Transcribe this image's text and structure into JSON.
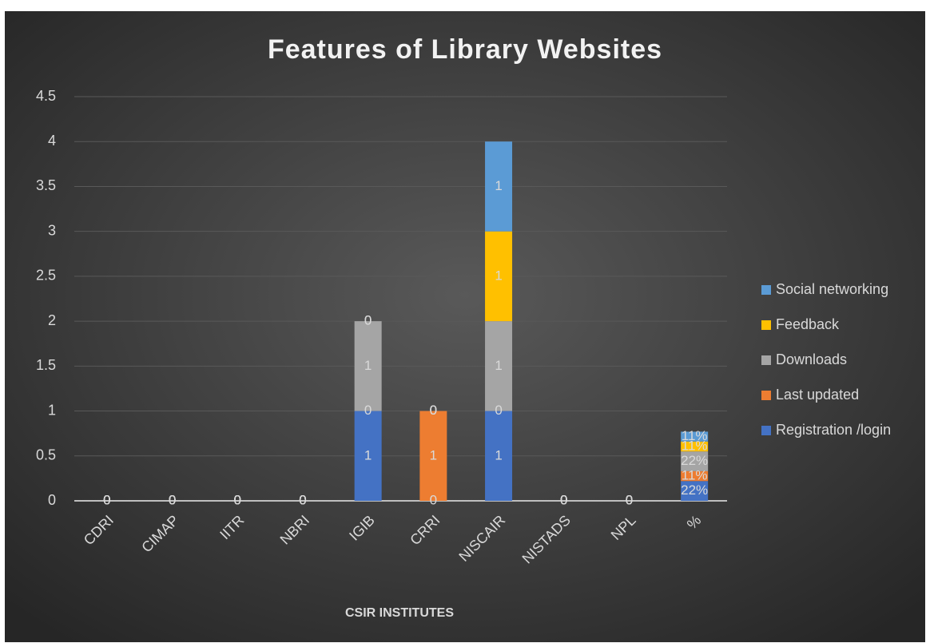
{
  "chart_data": {
    "type": "stacked_bar",
    "title": "Features of Library Websites",
    "x_label": "CSIR INSTITUTES",
    "categories": [
      "CDRI",
      "CIMAP",
      "IITR",
      "NBRI",
      "IGIB",
      "CRRI",
      "NISCAIR",
      "NISTADS",
      "NPL",
      "%"
    ],
    "series": [
      {
        "name": "Registration /login",
        "color": "#4472c4",
        "values": [
          0,
          0,
          0,
          0,
          1,
          0,
          1,
          0,
          0,
          0.22
        ],
        "value_labels": [
          null,
          null,
          null,
          null,
          null,
          null,
          null,
          null,
          null,
          "22%"
        ]
      },
      {
        "name": "Last updated",
        "color": "#ed7d31",
        "values": [
          0,
          0,
          0,
          0,
          0,
          1,
          0,
          0,
          0,
          0.11
        ],
        "value_labels": [
          null,
          null,
          null,
          null,
          null,
          null,
          null,
          null,
          null,
          "11%"
        ]
      },
      {
        "name": "Downloads",
        "color": "#a5a5a5",
        "values": [
          0,
          0,
          0,
          0,
          1,
          0,
          1,
          0,
          0,
          0.22
        ],
        "value_labels": [
          null,
          null,
          null,
          null,
          null,
          null,
          null,
          null,
          null,
          "22%"
        ]
      },
      {
        "name": "Feedback",
        "color": "#ffc000",
        "values": [
          0,
          0,
          0,
          0,
          0,
          0,
          1,
          0,
          0,
          0.11
        ],
        "value_labels": [
          null,
          null,
          null,
          null,
          null,
          null,
          null,
          null,
          null,
          "11%"
        ]
      },
      {
        "name": "Social networking",
        "color": "#5b9bd5",
        "values": [
          0,
          0,
          0,
          0,
          0,
          0,
          1,
          0,
          0,
          0.11
        ],
        "value_labels": [
          null,
          null,
          null,
          null,
          null,
          null,
          null,
          null,
          null,
          "11%"
        ]
      }
    ],
    "ylim": [
      0,
      4.5
    ],
    "yticks": [
      0,
      0.5,
      1,
      1.5,
      2,
      2.5,
      3,
      3.5,
      4,
      4.5
    ],
    "grid": true,
    "legend": "right"
  }
}
